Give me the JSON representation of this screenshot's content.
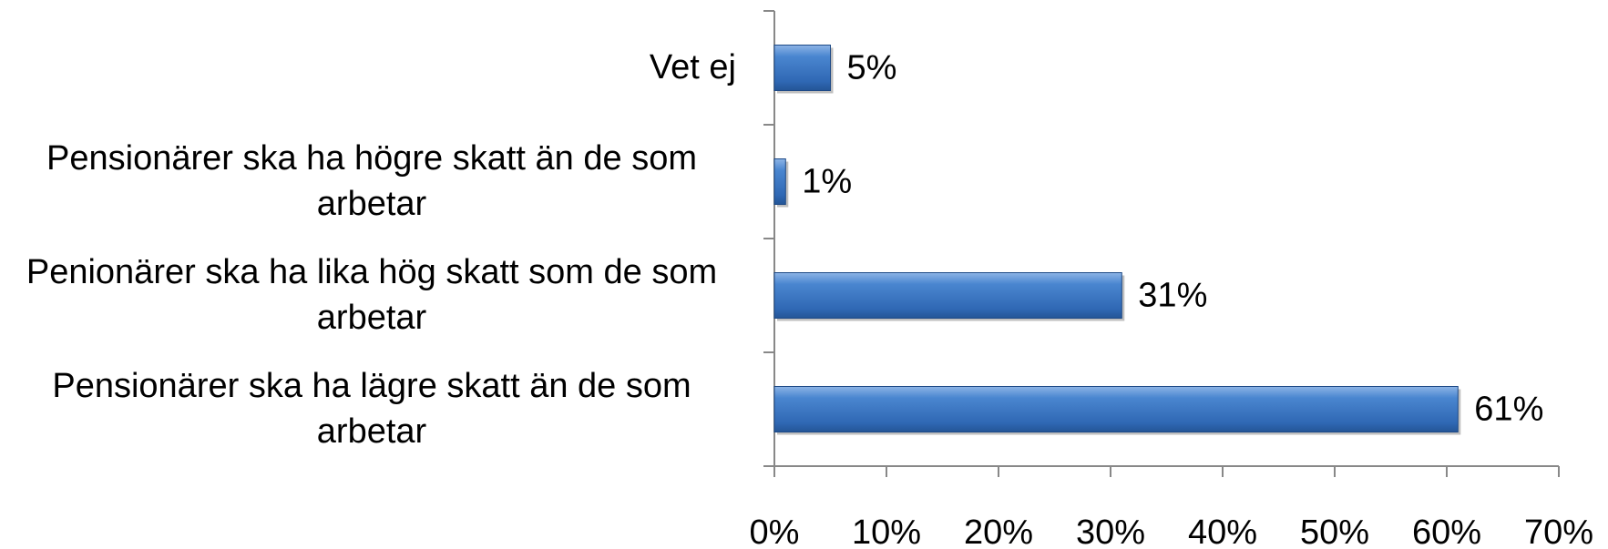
{
  "chart_data": {
    "type": "bar",
    "orientation": "horizontal",
    "categories": [
      "Vet ej",
      "Pensionärer ska ha högre skatt än de som arbetar",
      "Penionärer ska ha lika hög skatt som de som arbetar",
      "Pensionärer ska ha lägre skatt än de som arbetar"
    ],
    "values": [
      5,
      1,
      31,
      61
    ],
    "value_labels": [
      "5%",
      "1%",
      "31%",
      "61%"
    ],
    "color": "#3a78c4",
    "xlim": [
      0,
      70
    ],
    "xticks": [
      {
        "value": 0,
        "label": "0%"
      },
      {
        "value": 10,
        "label": "10%"
      },
      {
        "value": 20,
        "label": "20%"
      },
      {
        "value": 30,
        "label": "30%"
      },
      {
        "value": 40,
        "label": "40%"
      },
      {
        "value": 50,
        "label": "50%"
      },
      {
        "value": 60,
        "label": "60%"
      },
      {
        "value": 70,
        "label": "70%"
      }
    ],
    "grid": false
  }
}
